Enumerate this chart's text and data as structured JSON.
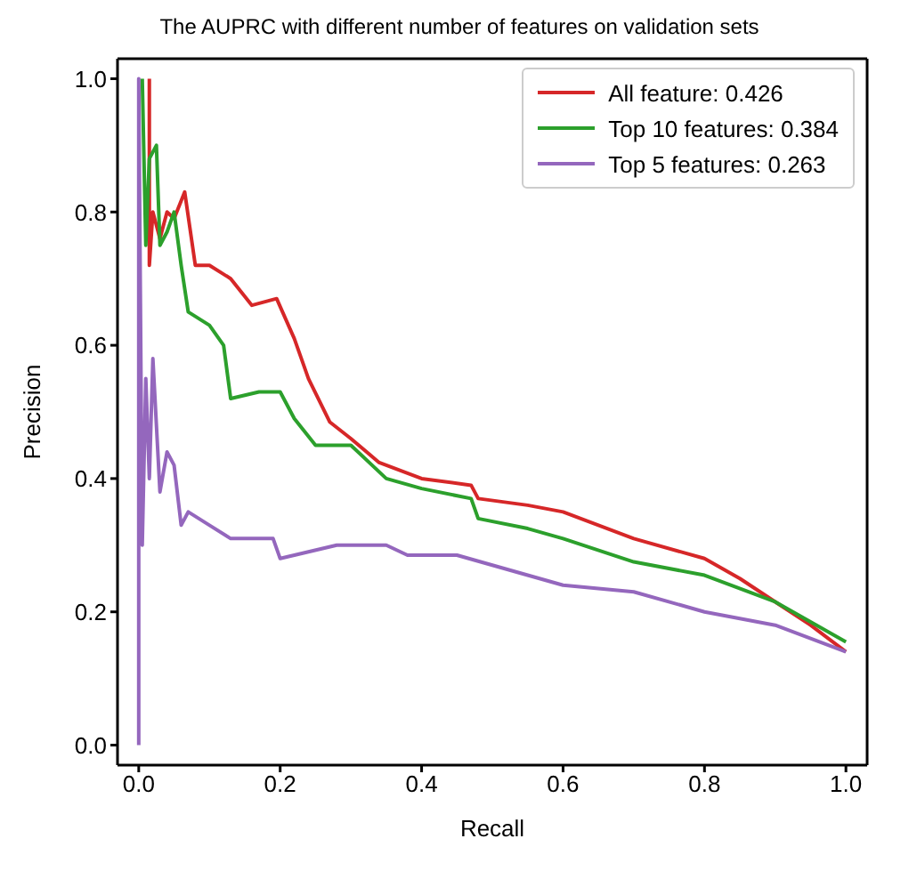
{
  "chart_data": {
    "type": "line",
    "title": "The AUPRC with different number of features on validation sets",
    "xlabel": "Recall",
    "ylabel": "Precision",
    "xlim": [
      -0.03,
      1.03
    ],
    "ylim": [
      -0.03,
      1.03
    ],
    "xticks": [
      {
        "value": 0,
        "label": "0.0"
      },
      0.2,
      0.4,
      0.6,
      0.8,
      {
        "value": 1,
        "label": "1.0"
      }
    ],
    "yticks": [
      {
        "value": 0,
        "label": "0.0"
      },
      0.2,
      0.4,
      0.6,
      0.8,
      {
        "value": 1,
        "label": "1.0"
      }
    ],
    "legend": "top right",
    "grid": false,
    "marker": "none",
    "line_style": "solid",
    "series": [
      {
        "name": "All feature: 0.426",
        "color": "#d62728",
        "x": [
          0.015,
          0.015,
          0.02,
          0.03,
          0.04,
          0.05,
          0.065,
          0.08,
          0.1,
          0.13,
          0.16,
          0.195,
          0.22,
          0.24,
          0.27,
          0.3,
          0.34,
          0.4,
          0.47,
          0.48,
          0.55,
          0.6,
          0.7,
          0.8,
          0.85,
          0.9,
          0.95,
          1.0
        ],
        "values": [
          1.0,
          0.72,
          0.8,
          0.76,
          0.8,
          0.79,
          0.83,
          0.72,
          0.72,
          0.7,
          0.66,
          0.67,
          0.61,
          0.55,
          0.485,
          0.46,
          0.424,
          0.4,
          0.39,
          0.37,
          0.36,
          0.35,
          0.31,
          0.28,
          0.25,
          0.215,
          0.18,
          0.14
        ]
      },
      {
        "name": "Top 10 features: 0.384",
        "color": "#2ca02c",
        "x": [
          0.005,
          0.01,
          0.015,
          0.025,
          0.03,
          0.04,
          0.05,
          0.06,
          0.07,
          0.1,
          0.12,
          0.13,
          0.17,
          0.2,
          0.22,
          0.25,
          0.3,
          0.35,
          0.4,
          0.47,
          0.48,
          0.55,
          0.6,
          0.7,
          0.8,
          0.9,
          1.0
        ],
        "values": [
          1.0,
          0.75,
          0.88,
          0.9,
          0.75,
          0.77,
          0.8,
          0.72,
          0.65,
          0.63,
          0.6,
          0.52,
          0.53,
          0.53,
          0.49,
          0.45,
          0.45,
          0.4,
          0.385,
          0.37,
          0.34,
          0.325,
          0.31,
          0.275,
          0.255,
          0.215,
          0.155
        ]
      },
      {
        "name": "Top 5 features: 0.263",
        "color": "#9467bd",
        "x": [
          0.0,
          0.0,
          0.005,
          0.01,
          0.015,
          0.02,
          0.03,
          0.04,
          0.05,
          0.06,
          0.07,
          0.1,
          0.13,
          0.19,
          0.2,
          0.28,
          0.3,
          0.35,
          0.38,
          0.45,
          0.5,
          0.6,
          0.7,
          0.8,
          0.9,
          1.0
        ],
        "values": [
          0.0,
          1.0,
          0.3,
          0.55,
          0.4,
          0.58,
          0.38,
          0.44,
          0.42,
          0.33,
          0.35,
          0.33,
          0.31,
          0.31,
          0.28,
          0.3,
          0.3,
          0.3,
          0.285,
          0.285,
          0.27,
          0.24,
          0.23,
          0.2,
          0.18,
          0.14
        ]
      }
    ]
  }
}
